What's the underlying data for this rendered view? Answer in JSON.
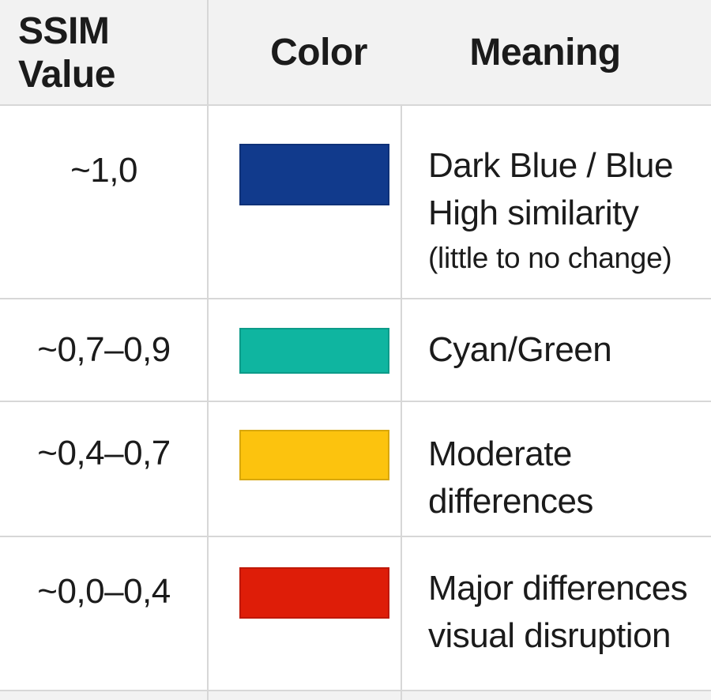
{
  "table": {
    "columns": [
      "SSIM Value",
      "Color",
      "Meaning"
    ],
    "rows": [
      {
        "value": "~1,0",
        "color": "#113a8c",
        "color_name": "dark-blue",
        "meaning": {
          "line1": "Dark Blue / Blue",
          "line2": "High similarity",
          "note": "(little to no change)"
        }
      },
      {
        "value": "~0,7–0,9",
        "color": "#0fb5a0",
        "color_name": "teal",
        "meaning": {
          "line1": "Cyan/Green"
        }
      },
      {
        "value": "~0,4–0,7",
        "color": "#fcc30e",
        "color_name": "yellow",
        "meaning": {
          "line1": "Moderate",
          "line2": "differences"
        }
      },
      {
        "value": "~0,0–0,4",
        "color": "#de1d08",
        "color_name": "red",
        "meaning": {
          "line1": "Major differences",
          "line2": "visual disruption"
        }
      }
    ]
  },
  "ui_colors": {
    "header_bg": "#f2f2f2",
    "grid_line": "#d7d7d7",
    "text": "#1b1b1b",
    "row_bg": "#ffffff"
  }
}
